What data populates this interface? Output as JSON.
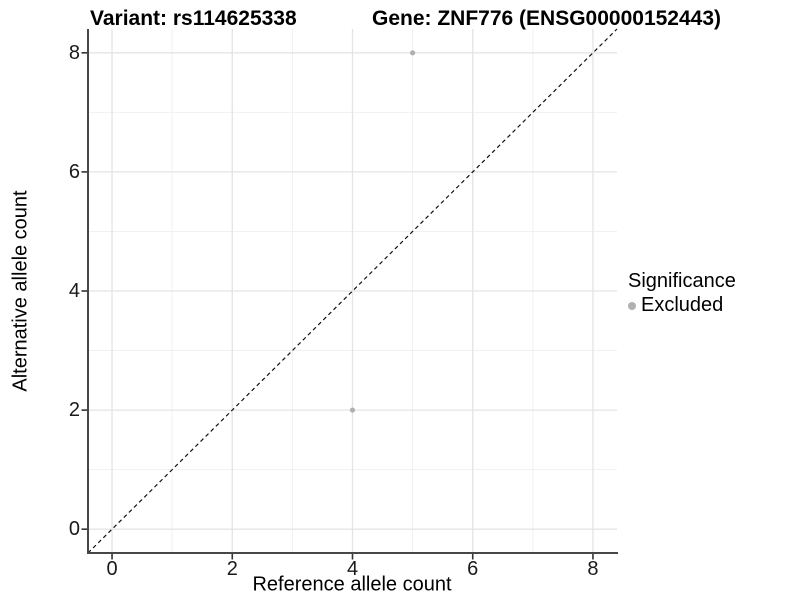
{
  "titles": {
    "variant": "Variant: rs114625338",
    "gene": "Gene: ZNF776 (ENSG00000152443)"
  },
  "axes": {
    "x_label": "Reference allele count",
    "y_label": "Alternative allele count"
  },
  "legend": {
    "title": "Significance",
    "items": [
      {
        "label": "Excluded",
        "color": "#b0b0b0"
      }
    ]
  },
  "chart_data": {
    "type": "scatter",
    "title": "Variant: rs114625338        Gene: ZNF776 (ENSG00000152443)",
    "xlabel": "Reference allele count",
    "ylabel": "Alternative allele count",
    "xlim": [
      -0.4,
      8.4
    ],
    "ylim": [
      -0.4,
      8.4
    ],
    "x_ticks": [
      0,
      2,
      4,
      6,
      8
    ],
    "y_ticks": [
      0,
      2,
      4,
      6,
      8
    ],
    "x_minor_ticks": [
      1,
      3,
      5,
      7
    ],
    "y_minor_ticks": [
      1,
      3,
      5,
      7
    ],
    "grid": true,
    "legend_position": "right",
    "series": [
      {
        "name": "Excluded",
        "color": "#b0b0b0",
        "points": [
          [
            5,
            8
          ],
          [
            4,
            2
          ]
        ]
      }
    ],
    "reference_line": {
      "type": "identity",
      "style": "dashed",
      "color": "#111111",
      "from": [
        -0.4,
        -0.4
      ],
      "to": [
        8.4,
        8.4
      ]
    }
  },
  "style": {
    "grid_major_color": "#e4e4e4",
    "grid_minor_color": "#f1f1f1",
    "axis_line_color": "#474747",
    "tick_mark_color": "#333333",
    "point_color": "#b0b0b0",
    "background_color": "#ffffff"
  }
}
